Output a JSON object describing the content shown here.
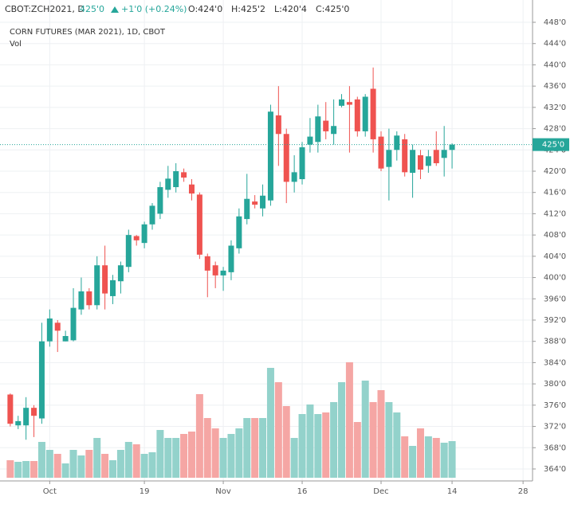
{
  "chart_data": {
    "type": "candlestick",
    "header": {
      "symbol": "CBOT:ZCH2021, D",
      "last": "425'0",
      "change": "+1'0 (+0.24%)",
      "open": "O:424'0",
      "high": "H:425'2",
      "low": "L:420'4",
      "close": "C:425'0"
    },
    "title": "CORN FUTURES (MAR 2021), 1D, CBOT",
    "volume_label": "Vol",
    "x": [
      0,
      1,
      2,
      3,
      4,
      5,
      6,
      7,
      8,
      9,
      10,
      11,
      12,
      13,
      14,
      15,
      16,
      17,
      18,
      19,
      20,
      21,
      22,
      23,
      24,
      25,
      26,
      27,
      28,
      29,
      30,
      31,
      32,
      33,
      34,
      35,
      36,
      37,
      38,
      39,
      40,
      41,
      42,
      43,
      44,
      45,
      46,
      47,
      48,
      49,
      50,
      51,
      52,
      53,
      54,
      55,
      56
    ],
    "open": [
      378,
      372.2,
      372.2,
      375.5,
      373.5,
      388,
      391.5,
      388,
      388.2,
      394,
      397.4,
      394.8,
      402.3,
      396.5,
      399.3,
      402,
      407.8,
      406.5,
      410,
      412,
      416.5,
      417,
      419.8,
      417.5,
      415.6,
      404,
      402.3,
      400.4,
      401,
      405.5,
      411,
      414.3,
      413,
      414.5,
      430.5,
      427,
      418,
      418.5,
      425,
      425.5,
      429.5,
      427,
      432.3,
      433,
      433.5,
      427.5,
      435.5,
      426.5,
      420.8,
      424,
      426,
      419.7,
      423,
      421,
      424,
      422.5,
      424
    ],
    "high": [
      378.2,
      374,
      377.5,
      376,
      391.5,
      394,
      392,
      390,
      398,
      400,
      398,
      404,
      406,
      400.5,
      403,
      409,
      408,
      410.5,
      414,
      418,
      421,
      421.5,
      420.5,
      418.5,
      416,
      404.5,
      403,
      402,
      407,
      413,
      419.5,
      415.5,
      417.5,
      432.5,
      436,
      428,
      423,
      425.5,
      430,
      432.5,
      433,
      433.5,
      434.5,
      436,
      434,
      434.5,
      439.5,
      427.5,
      428,
      427.5,
      427,
      425,
      424,
      424,
      427.5,
      428.5,
      425.25
    ],
    "low": [
      372,
      371.5,
      369.5,
      370,
      372.5,
      387,
      386,
      388,
      388,
      393,
      394,
      394,
      394,
      395,
      397,
      401,
      406,
      405.5,
      409,
      411,
      415,
      416,
      418,
      414.5,
      403.5,
      396.3,
      398,
      397.5,
      399.5,
      404.5,
      410,
      413,
      411.5,
      413.5,
      421,
      414,
      416,
      417.5,
      423.5,
      423.5,
      426,
      425,
      432,
      423.5,
      426.5,
      426.5,
      423.5,
      420,
      414.5,
      422,
      419,
      415,
      418.5,
      419.7,
      421,
      419,
      420.5
    ],
    "close": [
      372.5,
      373,
      375.5,
      374,
      388,
      392.3,
      390,
      389,
      394.3,
      397.4,
      394.8,
      402.3,
      397,
      399.5,
      402.3,
      408,
      407,
      410,
      413.5,
      417,
      418.6,
      420,
      418.8,
      415.8,
      404.3,
      401.3,
      400.4,
      401.3,
      406,
      411.5,
      414.8,
      413.7,
      415.4,
      431.2,
      427,
      418,
      419.8,
      424.5,
      426.5,
      430.3,
      427.5,
      428.5,
      433.5,
      432.5,
      427.5,
      434,
      426,
      420.5,
      424,
      426.7,
      419.8,
      424,
      420.3,
      422.8,
      421.5,
      424,
      425
    ],
    "volume": [
      22,
      20,
      21,
      21,
      45,
      35,
      30,
      18,
      35,
      28,
      35,
      50,
      30,
      22,
      35,
      45,
      42,
      30,
      32,
      60,
      50,
      50,
      55,
      58,
      105,
      75,
      62,
      50,
      55,
      62,
      75,
      75,
      75,
      138,
      120,
      90,
      50,
      80,
      92,
      80,
      82,
      95,
      120,
      145,
      70,
      122,
      95,
      110,
      95,
      82,
      52,
      40,
      62,
      52,
      50,
      44,
      46
    ],
    "up_color": "#26a69a",
    "down_color": "#ef5350",
    "volume_up_color": "#93d2cb",
    "volume_down_color": "#f5a6a4",
    "last_price": {
      "value": 425,
      "label": "425'0"
    },
    "xlim": [
      -1.3,
      66.2
    ],
    "xticks": [
      {
        "value": 5,
        "label": "Oct"
      },
      {
        "value": 17,
        "label": "19"
      },
      {
        "value": 27,
        "label": "Nov"
      },
      {
        "value": 37,
        "label": "16"
      },
      {
        "value": 47,
        "label": "Dec"
      },
      {
        "value": 56,
        "label": "14"
      },
      {
        "value": 65,
        "label": "28"
      }
    ],
    "ylim": [
      361.75,
      448.9
    ],
    "yticks": [
      {
        "value": 364,
        "label": "364'0"
      },
      {
        "value": 368,
        "label": "368'0"
      },
      {
        "value": 372,
        "label": "372'0"
      },
      {
        "value": 376,
        "label": "376'0"
      },
      {
        "value": 380,
        "label": "380'0"
      },
      {
        "value": 384,
        "label": "384'0"
      },
      {
        "value": 388,
        "label": "388'0"
      },
      {
        "value": 392,
        "label": "392'0"
      },
      {
        "value": 396,
        "label": "396'0"
      },
      {
        "value": 400,
        "label": "400'0"
      },
      {
        "value": 404,
        "label": "404'0"
      },
      {
        "value": 408,
        "label": "408'0"
      },
      {
        "value": 412,
        "label": "412'0"
      },
      {
        "value": 416,
        "label": "416'0"
      },
      {
        "value": 420,
        "label": "420'0"
      },
      {
        "value": 424,
        "label": "424'0"
      },
      {
        "value": 428,
        "label": "428'0"
      },
      {
        "value": 432,
        "label": "432'0"
      },
      {
        "value": 436,
        "label": "436'0"
      },
      {
        "value": 440,
        "label": "440'0"
      },
      {
        "value": 444,
        "label": "444'0"
      },
      {
        "value": 448,
        "label": "448'0"
      }
    ],
    "grid": true
  }
}
